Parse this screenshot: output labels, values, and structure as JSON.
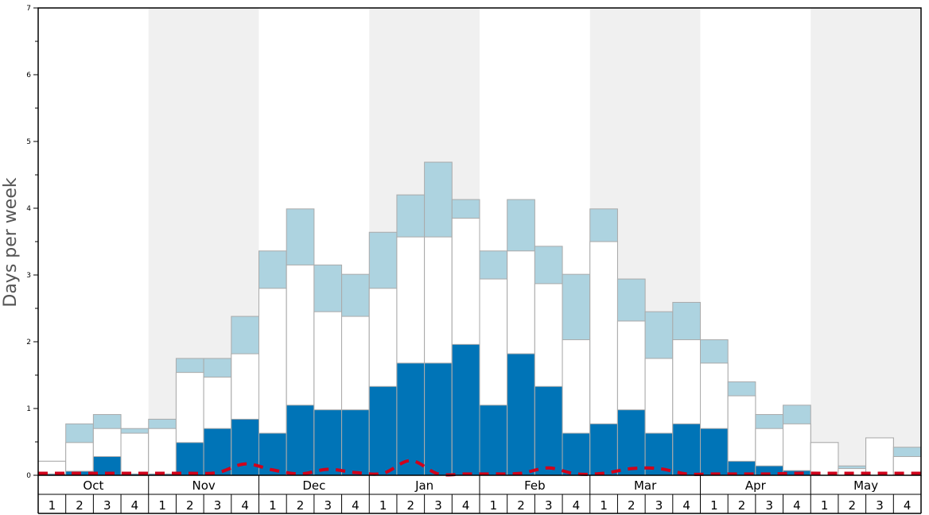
{
  "chart_data": {
    "type": "bar",
    "ylabel": "Days per week",
    "ylim": [
      0,
      7
    ],
    "y_ticks": [
      "0",
      "1",
      "2",
      "3",
      "4",
      "5",
      "6",
      "7"
    ],
    "months": [
      "Oct",
      "Nov",
      "Dec",
      "Jan",
      "Feb",
      "Mar",
      "Apr",
      "May"
    ],
    "weeks": [
      "1",
      "2",
      "3",
      "4"
    ],
    "shaded_months": [
      "Nov",
      "Jan",
      "Mar",
      "May"
    ],
    "colors": {
      "bottom": "#0074b7",
      "middle": "#ffffff",
      "top": "#add3e0",
      "line": "#d0021b",
      "shade": "#f0f0f0"
    },
    "series": [
      {
        "values": [
          0.02,
          0.06,
          0.28,
          0.02,
          0.02,
          0.49,
          0.7,
          0.84,
          0.63,
          1.05,
          0.98,
          0.98,
          1.33,
          1.68,
          1.68,
          1.96,
          1.05,
          1.82,
          1.33,
          0.63,
          0.77,
          0.98,
          0.63,
          0.77,
          0.7,
          0.21,
          0.14,
          0.07,
          0.0,
          0.0,
          0.0,
          0.0
        ]
      },
      {
        "values": [
          0.21,
          0.49,
          0.7,
          0.63,
          0.7,
          1.54,
          1.47,
          1.82,
          2.8,
          3.15,
          2.45,
          2.38,
          2.8,
          3.57,
          3.57,
          3.85,
          2.94,
          3.36,
          2.87,
          2.03,
          3.5,
          2.31,
          1.75,
          2.03,
          1.68,
          1.19,
          0.7,
          0.77,
          0.49,
          0.1,
          0.56,
          0.28
        ]
      },
      {
        "values": [
          0.21,
          0.77,
          0.91,
          0.7,
          0.84,
          1.75,
          1.75,
          2.38,
          3.36,
          3.99,
          3.15,
          3.01,
          3.64,
          4.2,
          4.69,
          4.13,
          3.36,
          4.13,
          3.43,
          3.01,
          3.99,
          2.94,
          2.45,
          2.59,
          2.03,
          1.4,
          0.91,
          1.05,
          0.49,
          0.14,
          0.56,
          0.42
        ]
      },
      {
        "values": [
          0.03,
          0.03,
          0.03,
          0.03,
          0.03,
          0.03,
          0.04,
          0.17,
          0.08,
          0.02,
          0.09,
          0.04,
          0.03,
          0.22,
          0.02,
          0.02,
          0.02,
          0.03,
          0.11,
          0.02,
          0.03,
          0.1,
          0.1,
          0.02,
          0.02,
          0.02,
          0.02,
          0.03,
          0.03,
          0.03,
          0.03,
          0.03
        ]
      }
    ]
  }
}
